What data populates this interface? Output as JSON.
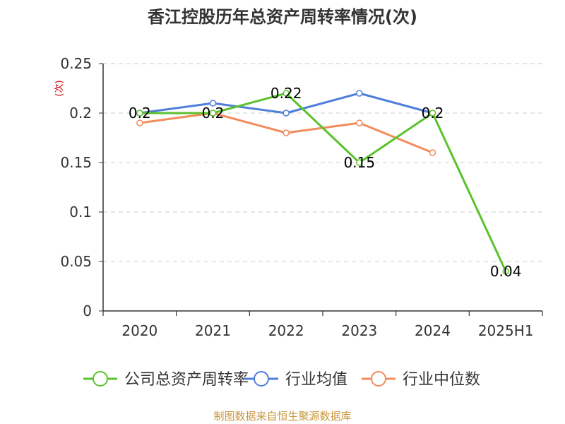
{
  "chart_data": {
    "type": "line",
    "title": "香江控股历年总资产周转率情况(次)",
    "ylabel": "(次)",
    "xlabel": "",
    "categories": [
      "2020",
      "2021",
      "2022",
      "2023",
      "2024",
      "2025H1"
    ],
    "ylim": [
      0,
      0.25
    ],
    "yticks": [
      "0",
      "0.05",
      "0.1",
      "0.15",
      "0.2",
      "0.25"
    ],
    "grid": true,
    "legend_position": "bottom",
    "series": [
      {
        "name": "公司总资产周转率",
        "color": "#5bc22d",
        "values": [
          0.2,
          0.2,
          0.22,
          0.15,
          0.2,
          0.04
        ],
        "labels": [
          "0.2",
          "0.2",
          "0.22",
          "0.15",
          "0.2",
          "0.04"
        ]
      },
      {
        "name": "行业均值",
        "color": "#4f7fd9",
        "values": [
          0.2,
          0.21,
          0.2,
          0.22,
          0.2,
          null
        ]
      },
      {
        "name": "行业中位数",
        "color": "#f28c5c",
        "values": [
          0.19,
          0.2,
          0.18,
          0.19,
          0.16,
          null
        ]
      }
    ],
    "source": "制图数据来自恒生聚源数据库"
  }
}
